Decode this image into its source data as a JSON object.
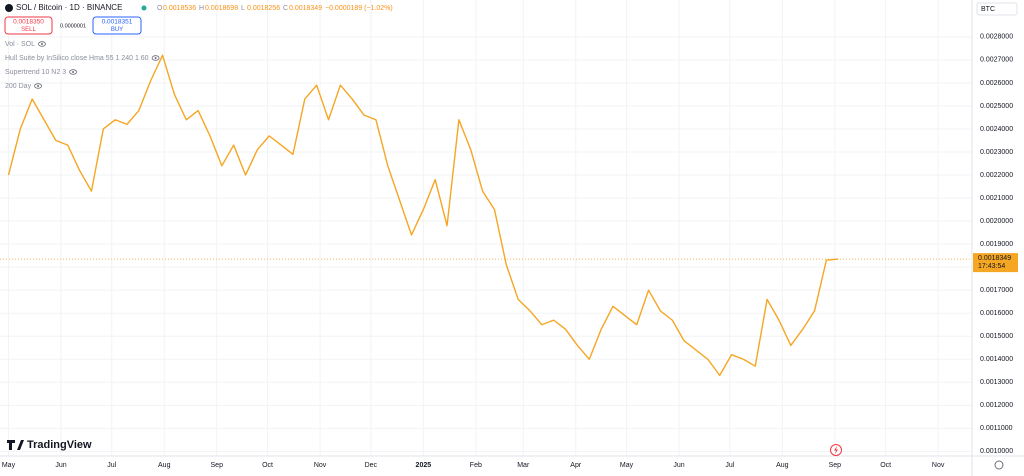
{
  "chart_data": {
    "type": "line",
    "title": "SOL / Bitcoin · 1D · BINANCE",
    "ohlc": [
      {
        "label": "O",
        "value": "0.0018536"
      },
      {
        "label": "H",
        "value": "0.0018698"
      },
      {
        "label": "L",
        "value": "0.0018256"
      },
      {
        "label": "C",
        "value": "0.0018349"
      }
    ],
    "change": "−0.0000189 (−1.02%)",
    "sell": {
      "price": "0.0018350",
      "label": "SELL"
    },
    "spread": "0.0000001",
    "buy": {
      "price": "0.0018351",
      "label": "BUY"
    },
    "indicators": [
      "Vol · SOL",
      "Hull Suite by InSilico close Hma 55 1 240 1 60",
      "Supertrend 10 N2 3",
      "200 Day"
    ],
    "currency": "BTC",
    "brand": "TradingView",
    "last_price": 0.0018349,
    "countdown": "17:43:54",
    "color": "#f5a623",
    "grid": true,
    "x": [
      0,
      7,
      14,
      21,
      28,
      35,
      42,
      49,
      56,
      63,
      70,
      77,
      84,
      91,
      98,
      105,
      112,
      119,
      126,
      133,
      140,
      147,
      154,
      161,
      168,
      175,
      182,
      189,
      196,
      203,
      210,
      217,
      224,
      231,
      238,
      245,
      252,
      259,
      266,
      273,
      280,
      287,
      294,
      301,
      308,
      315,
      322,
      329,
      336,
      343,
      350,
      357,
      364,
      371,
      378,
      385,
      392,
      399,
      406,
      413,
      420,
      427,
      434,
      441,
      448,
      455,
      462,
      469,
      476,
      483,
      490
    ],
    "values": [
      0.0022,
      0.0024,
      0.00253,
      0.00244,
      0.00235,
      0.00233,
      0.00222,
      0.00213,
      0.0024,
      0.00244,
      0.00242,
      0.00248,
      0.00261,
      0.00272,
      0.00255,
      0.00244,
      0.00248,
      0.00237,
      0.00224,
      0.00233,
      0.0022,
      0.00231,
      0.00237,
      0.00233,
      0.00229,
      0.00253,
      0.00259,
      0.00244,
      0.00259,
      0.00253,
      0.00246,
      0.00244,
      0.00224,
      0.00209,
      0.00194,
      0.00205,
      0.00218,
      0.00198,
      0.00244,
      0.00231,
      0.00213,
      0.00205,
      0.00181,
      0.00166,
      0.00161,
      0.00155,
      0.00157,
      0.00153,
      0.00146,
      0.0014,
      0.00153,
      0.00163,
      0.00159,
      0.00155,
      0.0017,
      0.00161,
      0.00157,
      0.00148,
      0.00144,
      0.0014,
      0.00133,
      0.00142,
      0.0014,
      0.00137,
      0.00166,
      0.00157,
      0.00146,
      0.00153,
      0.00161,
      0.00183,
      0.0018349
    ],
    "xlim": [
      -5,
      569
    ],
    "xticks": [
      {
        "value": 0,
        "label": "May"
      },
      {
        "value": 31,
        "label": "Jun"
      },
      {
        "value": 61,
        "label": "Jul"
      },
      {
        "value": 92,
        "label": "Aug"
      },
      {
        "value": 123,
        "label": "Sep"
      },
      {
        "value": 153,
        "label": "Oct"
      },
      {
        "value": 184,
        "label": "Nov"
      },
      {
        "value": 214,
        "label": "Dec"
      },
      {
        "value": 245,
        "label": "2025"
      },
      {
        "value": 276,
        "label": "Feb"
      },
      {
        "value": 304,
        "label": "Mar"
      },
      {
        "value": 335,
        "label": "Apr"
      },
      {
        "value": 365,
        "label": "May"
      },
      {
        "value": 396,
        "label": "Jun"
      },
      {
        "value": 426,
        "label": "Jul"
      },
      {
        "value": 457,
        "label": "Aug"
      },
      {
        "value": 488,
        "label": "Sep"
      },
      {
        "value": 518,
        "label": "Oct"
      },
      {
        "value": 549,
        "label": "Nov"
      }
    ],
    "ylim": [
      0.00098,
      0.00296
    ],
    "yticks": [
      {
        "value": 0.001,
        "label": "0.0010000"
      },
      {
        "value": 0.0011,
        "label": "0.0011000"
      },
      {
        "value": 0.0012,
        "label": "0.0012000"
      },
      {
        "value": 0.0013,
        "label": "0.0013000"
      },
      {
        "value": 0.0014,
        "label": "0.0014000"
      },
      {
        "value": 0.0015,
        "label": "0.0015000"
      },
      {
        "value": 0.0016,
        "label": "0.0016000"
      },
      {
        "value": 0.0017,
        "label": "0.0017000"
      },
      {
        "value": 0.0018,
        "label": "0.0018000"
      },
      {
        "value": 0.0019,
        "label": "0.0019000"
      },
      {
        "value": 0.002,
        "label": "0.0020000"
      },
      {
        "value": 0.0021,
        "label": "0.0021000"
      },
      {
        "value": 0.0022,
        "label": "0.0022000"
      },
      {
        "value": 0.0023,
        "label": "0.0023000"
      },
      {
        "value": 0.0024,
        "label": "0.0024000"
      },
      {
        "value": 0.0025,
        "label": "0.0025000"
      },
      {
        "value": 0.0026,
        "label": "0.0026000"
      },
      {
        "value": 0.0027,
        "label": "0.0027000"
      },
      {
        "value": 0.0028,
        "label": "0.0028000"
      }
    ]
  }
}
